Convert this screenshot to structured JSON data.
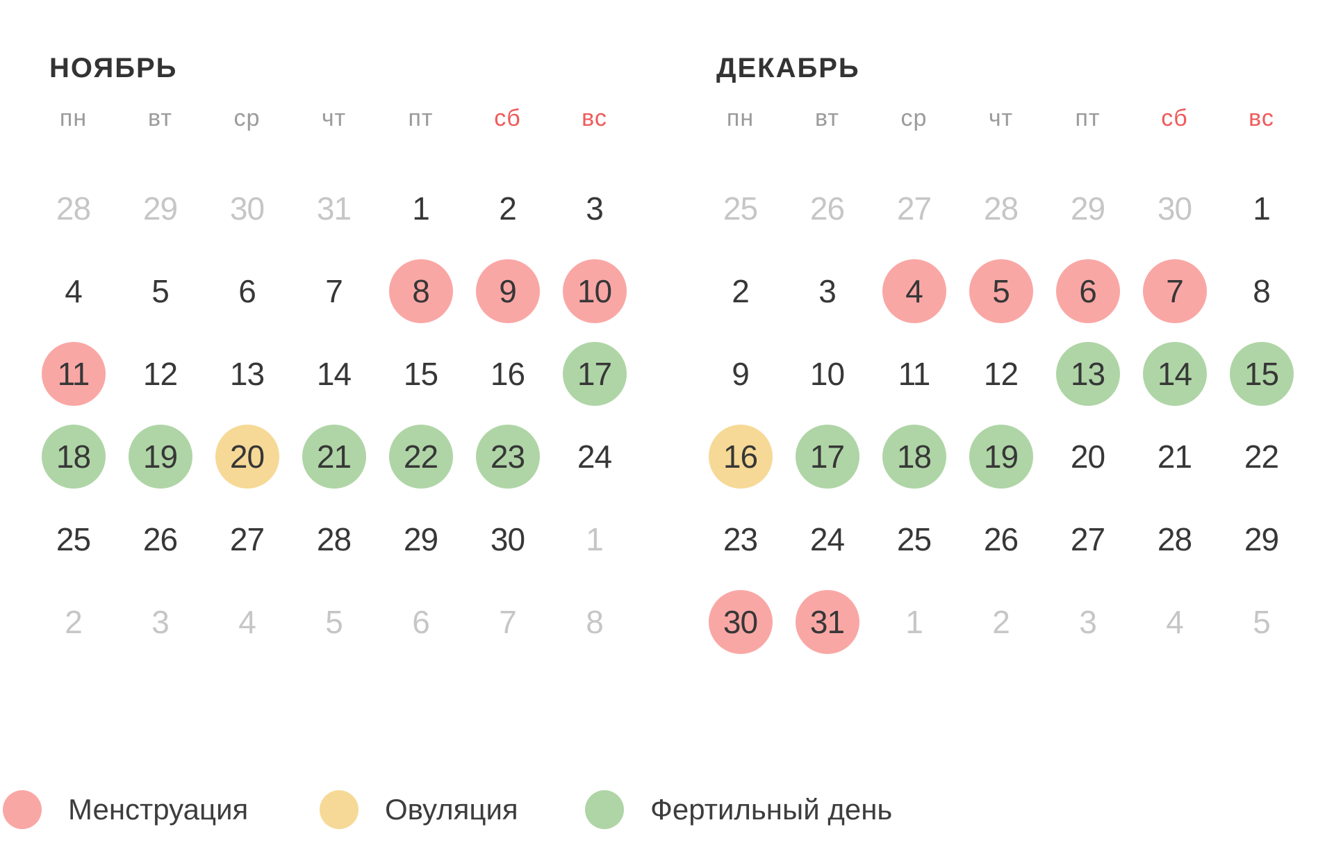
{
  "colors": {
    "menstruation": "#F9A7A5",
    "ovulation": "#F6D996",
    "fertile": "#AFD5A6",
    "weekend_header": "#F05A5A",
    "weekday_header": "#9B9B9B",
    "day_text": "#373737",
    "muted_day_text": "#C6C6C6",
    "title_text": "#333333",
    "legend_text": "#3D3D3D"
  },
  "months": [
    {
      "title": "НОЯБРЬ",
      "weekdays": [
        {
          "label": "пн",
          "weekend": false
        },
        {
          "label": "вт",
          "weekend": false
        },
        {
          "label": "ср",
          "weekend": false
        },
        {
          "label": "чт",
          "weekend": false
        },
        {
          "label": "пт",
          "weekend": false
        },
        {
          "label": "сб",
          "weekend": true
        },
        {
          "label": "вс",
          "weekend": true
        }
      ],
      "weeks": [
        [
          {
            "n": 28,
            "state": "muted"
          },
          {
            "n": 29,
            "state": "muted"
          },
          {
            "n": 30,
            "state": "muted"
          },
          {
            "n": 31,
            "state": "muted"
          },
          {
            "n": 1,
            "state": "normal"
          },
          {
            "n": 2,
            "state": "normal"
          },
          {
            "n": 3,
            "state": "normal"
          }
        ],
        [
          {
            "n": 4,
            "state": "normal"
          },
          {
            "n": 5,
            "state": "normal"
          },
          {
            "n": 6,
            "state": "normal"
          },
          {
            "n": 7,
            "state": "normal"
          },
          {
            "n": 8,
            "state": "menstruation"
          },
          {
            "n": 9,
            "state": "menstruation"
          },
          {
            "n": 10,
            "state": "menstruation"
          }
        ],
        [
          {
            "n": 11,
            "state": "menstruation"
          },
          {
            "n": 12,
            "state": "normal"
          },
          {
            "n": 13,
            "state": "normal"
          },
          {
            "n": 14,
            "state": "normal"
          },
          {
            "n": 15,
            "state": "normal"
          },
          {
            "n": 16,
            "state": "normal"
          },
          {
            "n": 17,
            "state": "fertile"
          }
        ],
        [
          {
            "n": 18,
            "state": "fertile"
          },
          {
            "n": 19,
            "state": "fertile"
          },
          {
            "n": 20,
            "state": "ovulation"
          },
          {
            "n": 21,
            "state": "fertile"
          },
          {
            "n": 22,
            "state": "fertile"
          },
          {
            "n": 23,
            "state": "fertile"
          },
          {
            "n": 24,
            "state": "normal"
          }
        ],
        [
          {
            "n": 25,
            "state": "normal"
          },
          {
            "n": 26,
            "state": "normal"
          },
          {
            "n": 27,
            "state": "normal"
          },
          {
            "n": 28,
            "state": "normal"
          },
          {
            "n": 29,
            "state": "normal"
          },
          {
            "n": 30,
            "state": "normal"
          },
          {
            "n": 1,
            "state": "muted"
          }
        ],
        [
          {
            "n": 2,
            "state": "muted"
          },
          {
            "n": 3,
            "state": "muted"
          },
          {
            "n": 4,
            "state": "muted"
          },
          {
            "n": 5,
            "state": "muted"
          },
          {
            "n": 6,
            "state": "muted"
          },
          {
            "n": 7,
            "state": "muted"
          },
          {
            "n": 8,
            "state": "muted"
          }
        ]
      ]
    },
    {
      "title": "ДЕКАБРЬ",
      "weekdays": [
        {
          "label": "пн",
          "weekend": false
        },
        {
          "label": "вт",
          "weekend": false
        },
        {
          "label": "ср",
          "weekend": false
        },
        {
          "label": "чт",
          "weekend": false
        },
        {
          "label": "пт",
          "weekend": false
        },
        {
          "label": "сб",
          "weekend": true
        },
        {
          "label": "вс",
          "weekend": true
        }
      ],
      "weeks": [
        [
          {
            "n": 25,
            "state": "muted"
          },
          {
            "n": 26,
            "state": "muted"
          },
          {
            "n": 27,
            "state": "muted"
          },
          {
            "n": 28,
            "state": "muted"
          },
          {
            "n": 29,
            "state": "muted"
          },
          {
            "n": 30,
            "state": "muted"
          },
          {
            "n": 1,
            "state": "normal"
          }
        ],
        [
          {
            "n": 2,
            "state": "normal"
          },
          {
            "n": 3,
            "state": "normal"
          },
          {
            "n": 4,
            "state": "menstruation"
          },
          {
            "n": 5,
            "state": "menstruation"
          },
          {
            "n": 6,
            "state": "menstruation"
          },
          {
            "n": 7,
            "state": "menstruation"
          },
          {
            "n": 8,
            "state": "normal"
          }
        ],
        [
          {
            "n": 9,
            "state": "normal"
          },
          {
            "n": 10,
            "state": "normal"
          },
          {
            "n": 11,
            "state": "normal"
          },
          {
            "n": 12,
            "state": "normal"
          },
          {
            "n": 13,
            "state": "fertile"
          },
          {
            "n": 14,
            "state": "fertile"
          },
          {
            "n": 15,
            "state": "fertile"
          }
        ],
        [
          {
            "n": 16,
            "state": "ovulation"
          },
          {
            "n": 17,
            "state": "fertile"
          },
          {
            "n": 18,
            "state": "fertile"
          },
          {
            "n": 19,
            "state": "fertile"
          },
          {
            "n": 20,
            "state": "normal"
          },
          {
            "n": 21,
            "state": "normal"
          },
          {
            "n": 22,
            "state": "normal"
          }
        ],
        [
          {
            "n": 23,
            "state": "normal"
          },
          {
            "n": 24,
            "state": "normal"
          },
          {
            "n": 25,
            "state": "normal"
          },
          {
            "n": 26,
            "state": "normal"
          },
          {
            "n": 27,
            "state": "normal"
          },
          {
            "n": 28,
            "state": "normal"
          },
          {
            "n": 29,
            "state": "normal"
          }
        ],
        [
          {
            "n": 30,
            "state": "menstruation"
          },
          {
            "n": 31,
            "state": "menstruation"
          },
          {
            "n": 1,
            "state": "muted"
          },
          {
            "n": 2,
            "state": "muted"
          },
          {
            "n": 3,
            "state": "muted"
          },
          {
            "n": 4,
            "state": "muted"
          },
          {
            "n": 5,
            "state": "muted"
          }
        ]
      ]
    }
  ],
  "legend": {
    "items": [
      {
        "label": "Менструация",
        "type": "menstruation"
      },
      {
        "label": "Овуляция",
        "type": "ovulation"
      },
      {
        "label": "Фертильный день",
        "type": "fertile"
      }
    ]
  }
}
